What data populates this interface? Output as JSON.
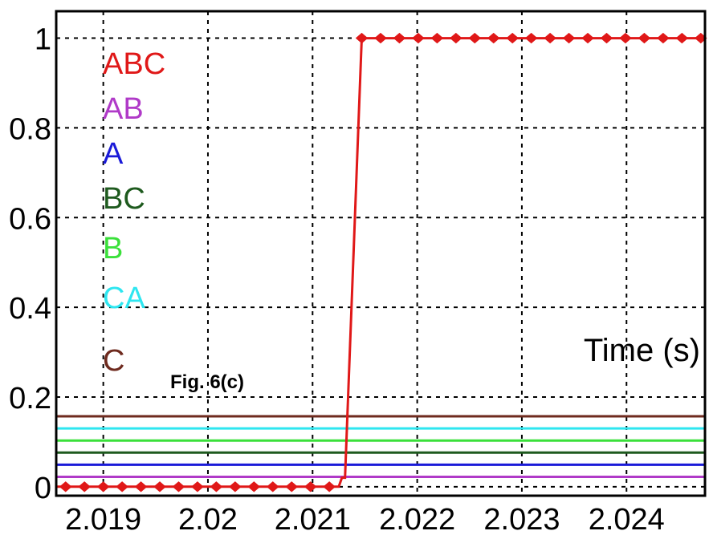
{
  "chart_data": {
    "type": "line",
    "title": "",
    "xlabel": "Time (s)",
    "ylabel": "",
    "xlim": [
      2.01855,
      2.02475
    ],
    "ylim": [
      -0.02,
      1.06
    ],
    "grid": true,
    "x_ticks": [
      2.019,
      2.02,
      2.021,
      2.022,
      2.023,
      2.024
    ],
    "x_tick_labels": [
      "2.019",
      "2.02",
      "2.021",
      "2.022",
      "2.023",
      "2.024"
    ],
    "y_ticks": [
      0,
      0.2,
      0.4,
      0.6,
      0.8,
      1
    ],
    "y_tick_labels": [
      "0",
      "0.2",
      "0.4",
      "0.6",
      "0.8",
      "1"
    ],
    "annotation": "Fig. 6(c)",
    "legend": [
      {
        "label": "ABC",
        "color": "#e01818"
      },
      {
        "label": "AB",
        "color": "#b03ac8"
      },
      {
        "label": "A",
        "color": "#1a1ad8"
      },
      {
        "label": "BC",
        "color": "#1e5a1e"
      },
      {
        "label": "B",
        "color": "#3ae03a"
      },
      {
        "label": "CA",
        "color": "#2ee6f0"
      },
      {
        "label": "C",
        "color": "#6e2a1e"
      }
    ],
    "series": [
      {
        "name": "ABC",
        "color": "#e01818",
        "marker": "dot",
        "x": [
          2.01855,
          2.02125,
          2.02128,
          2.02131,
          2.02147,
          2.02475
        ],
        "y": [
          0,
          0,
          0.02,
          0.02,
          1,
          1
        ]
      },
      {
        "name": "AB",
        "color": "#b03ac8",
        "x": [
          2.01855,
          2.02475
        ],
        "y": [
          0.022,
          0.022
        ]
      },
      {
        "name": "A",
        "color": "#1a1ad8",
        "x": [
          2.01855,
          2.02475
        ],
        "y": [
          0.049,
          0.049
        ]
      },
      {
        "name": "BC",
        "color": "#1e5a1e",
        "x": [
          2.01855,
          2.02475
        ],
        "y": [
          0.076,
          0.076
        ]
      },
      {
        "name": "B",
        "color": "#3ae03a",
        "x": [
          2.01855,
          2.02475
        ],
        "y": [
          0.103,
          0.103
        ]
      },
      {
        "name": "CA",
        "color": "#2ee6f0",
        "x": [
          2.01855,
          2.02475
        ],
        "y": [
          0.13,
          0.13
        ]
      },
      {
        "name": "C",
        "color": "#6e2a1e",
        "x": [
          2.01855,
          2.02475
        ],
        "y": [
          0.157,
          0.157
        ]
      }
    ]
  }
}
